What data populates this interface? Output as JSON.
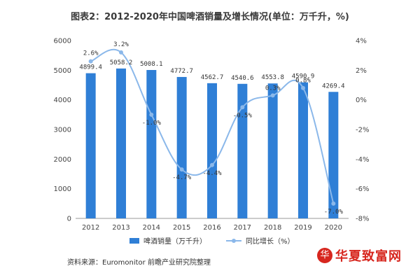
{
  "header": {
    "title": "图表2：2012-2020年中国啤酒销量及增长情况(单位：万千升，%)"
  },
  "chart_data": {
    "type": "bar",
    "categories": [
      "2012",
      "2013",
      "2014",
      "2015",
      "2016",
      "2017",
      "2018",
      "2019",
      "2020"
    ],
    "series": [
      {
        "name": "啤酒销量（万千升）",
        "type": "bar",
        "values": [
          4899.4,
          5058.2,
          5008.1,
          4772.7,
          4562.7,
          4540.6,
          4553.8,
          4590.9,
          4269.4
        ]
      },
      {
        "name": "同比增长（%）",
        "type": "line",
        "values": [
          2.6,
          3.2,
          -1.0,
          -4.7,
          -4.4,
          -0.5,
          0.3,
          0.8,
          -7.0
        ]
      }
    ],
    "bar_labels": [
      "4899.4",
      "5058.2",
      "5008.1",
      "4772.7",
      "4562.7",
      "4540.6",
      "4553.8",
      "4590.9",
      "4269.4"
    ],
    "line_labels": [
      "2.6%",
      "3.2%",
      "-1.0%",
      "-4.7%",
      "-4.4%",
      "-0.5%",
      "0.3%",
      "0.8%",
      "-7.0%"
    ],
    "ylim": [
      0,
      6000
    ],
    "y_ticks": [
      "0",
      "1000",
      "2000",
      "3000",
      "4000",
      "5000",
      "6000"
    ],
    "y2lim": [
      -8,
      4
    ],
    "y2_ticks": [
      "-8%",
      "-6%",
      "-4%",
      "-2%",
      "0%",
      "2%",
      "4%"
    ],
    "legend_position": "bottom",
    "grid": false,
    "colors": {
      "bar": "#2f7fd6",
      "line": "#8bb8ea"
    }
  },
  "footer": {
    "source": "资料来源：Euromonitor 前瞻产业研究院整理",
    "logo_text": "华夏致富网",
    "logo_glyph": "华"
  }
}
